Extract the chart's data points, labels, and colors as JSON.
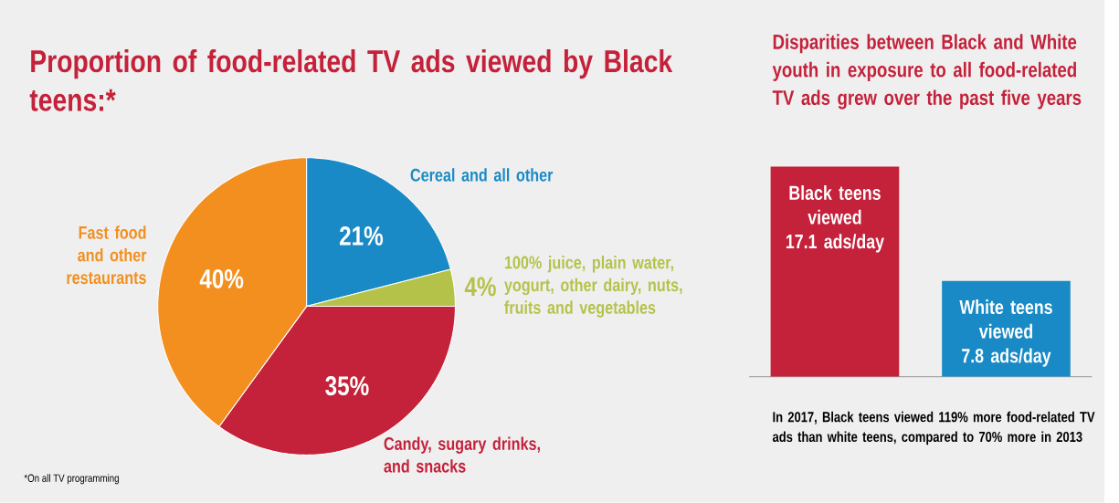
{
  "chart_data": [
    {
      "type": "pie",
      "title": "Proportion of food-related TV ads viewed by Black teens:*",
      "categories": [
        "Cereal and all other",
        "100% juice, plain water, yogurt, other dairy, nuts, fruits and vegetables",
        "Candy, sugary drinks, and snacks",
        "Fast food and other restaurants"
      ],
      "values": [
        21,
        4,
        35,
        40
      ],
      "colors": [
        "#1a8ac6",
        "#b5c24a",
        "#c4213a",
        "#f28f1f"
      ],
      "value_labels": [
        "21%",
        "4%",
        "35%",
        "40%"
      ],
      "annotations": [
        "*On all TV programming"
      ]
    },
    {
      "type": "bar",
      "title": "Disparities between Black and White youth in exposure to all food-related TV ads grew over the past five years",
      "categories": [
        "Black teens viewed",
        "White teens viewed"
      ],
      "values": [
        17.1,
        7.8
      ],
      "colors": [
        "#c4213a",
        "#1a8ac6"
      ],
      "value_labels": [
        "17.1 ads/day",
        "7.8 ads/day"
      ],
      "annotations": [
        "In 2017, Black teens viewed 119% more food-related TV ads than white teens, compared to 70% more in 2013"
      ]
    }
  ]
}
